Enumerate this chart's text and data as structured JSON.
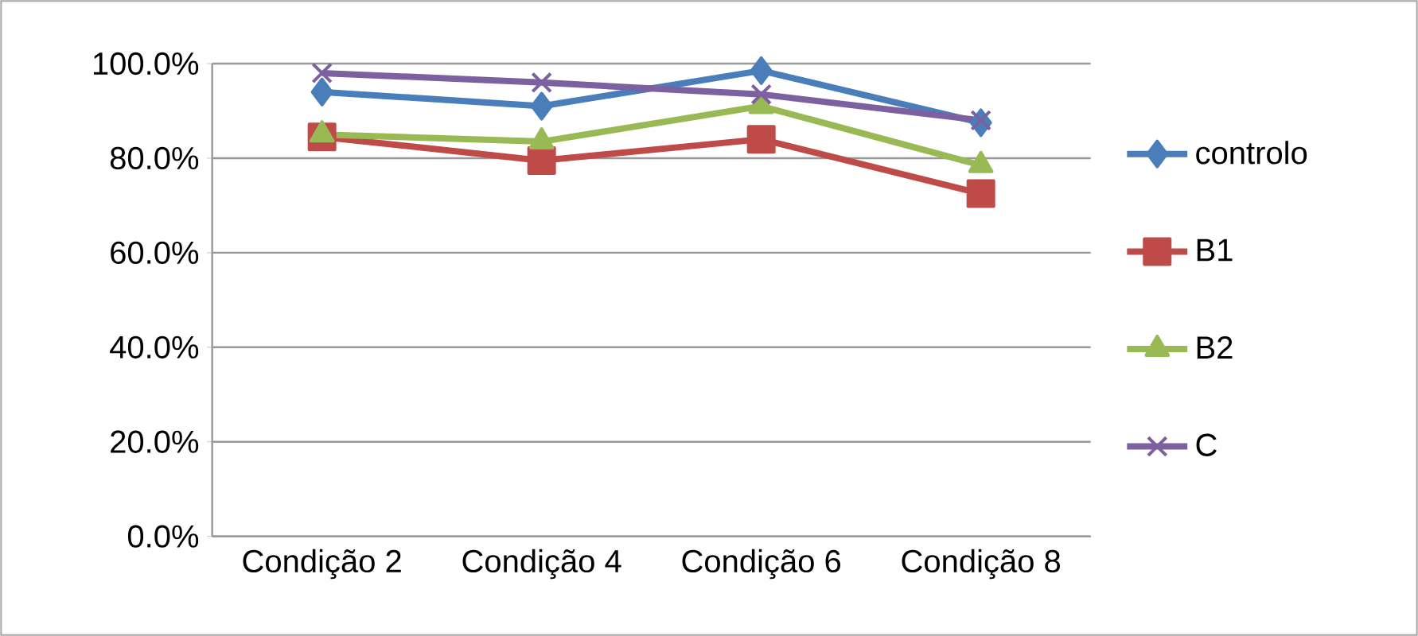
{
  "chart_data": {
    "type": "line",
    "categories": [
      "Condição 2",
      "Condição 4",
      "Condição 6",
      "Condição 8"
    ],
    "series": [
      {
        "name": "controlo",
        "color": "#4a7ebb",
        "marker": "diamond",
        "values": [
          94,
          91,
          98.5,
          87.5
        ]
      },
      {
        "name": "B1",
        "color": "#be4b48",
        "marker": "square",
        "values": [
          84.5,
          79.5,
          84,
          72.5
        ]
      },
      {
        "name": "B2",
        "color": "#98b954",
        "marker": "triangle",
        "values": [
          85,
          83.5,
          91,
          78.5
        ]
      },
      {
        "name": "C",
        "color": "#7d60a0",
        "marker": "cross",
        "values": [
          98,
          96,
          93.5,
          88
        ]
      }
    ],
    "ylim": [
      0,
      100
    ],
    "yticks": [
      {
        "value": 0,
        "label": "0.0%"
      },
      {
        "value": 20,
        "label": "20.0%"
      },
      {
        "value": 40,
        "label": "40.0%"
      },
      {
        "value": 60,
        "label": "60.0%"
      },
      {
        "value": 80,
        "label": "80.0%"
      },
      {
        "value": 100,
        "label": "100.0%"
      }
    ],
    "grid": "y",
    "legend": "right"
  }
}
